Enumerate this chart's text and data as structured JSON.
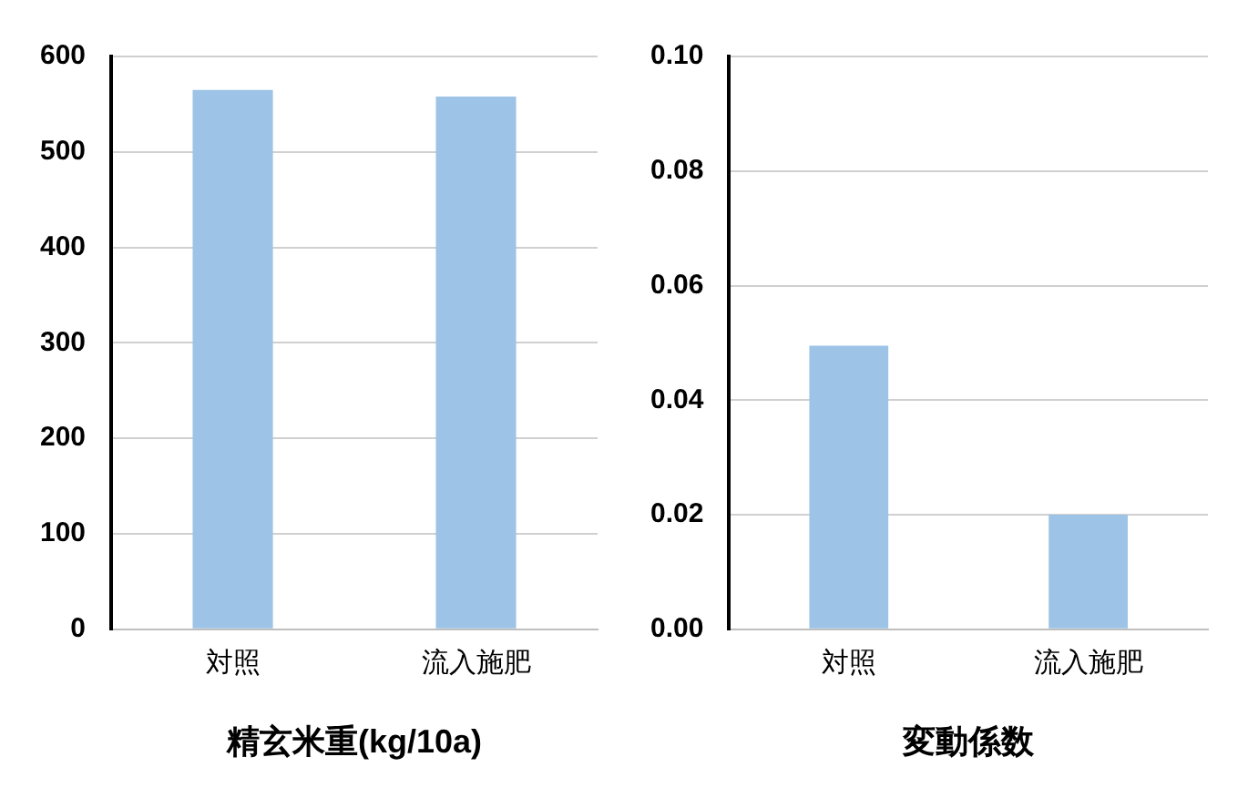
{
  "chart_data": [
    {
      "type": "bar",
      "xlabel": "精玄米重(kg/10a)",
      "categories": [
        "対照",
        "流入施肥"
      ],
      "values": [
        565,
        558
      ],
      "color": "#9dc3e6",
      "ylim": [
        0,
        600
      ],
      "yticks": [
        0,
        100,
        200,
        300,
        400,
        500,
        600
      ],
      "grid": "y"
    },
    {
      "type": "bar",
      "xlabel": "変動係数",
      "categories": [
        "対照",
        "流入施肥"
      ],
      "values": [
        0.0495,
        0.02
      ],
      "color": "#9dc3e6",
      "ylim": [
        0,
        0.1
      ],
      "yticks": [
        {
          "value": 0,
          "label": "0.00"
        },
        {
          "value": 0.02,
          "label": "0.02"
        },
        {
          "value": 0.04,
          "label": "0.04"
        },
        {
          "value": 0.06,
          "label": "0.06"
        },
        {
          "value": 0.08,
          "label": "0.08"
        },
        {
          "value": 0.1,
          "label": "0.10"
        }
      ],
      "grid": "y"
    }
  ]
}
